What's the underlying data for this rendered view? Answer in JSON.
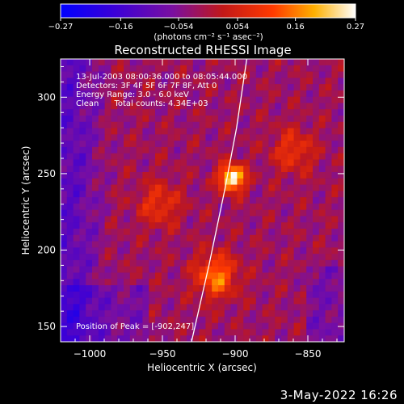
{
  "chart_data": {
    "type": "heatmap",
    "title": "Reconstructed RHESSI Image",
    "xlabel": "Heliocentric X (arcsec)",
    "ylabel": "Heliocentric Y (arcsec)",
    "xlim": [
      -1020,
      -825
    ],
    "ylim": [
      140,
      325
    ],
    "xticks": [
      -1000,
      -950,
      -900,
      -850
    ],
    "xtick_labels": [
      "−1000",
      "−950",
      "−900",
      "−850"
    ],
    "yticks": [
      150,
      200,
      250,
      300
    ],
    "ytick_labels": [
      "150",
      "200",
      "250",
      "300"
    ],
    "colorbar": {
      "min": -0.27,
      "max": 0.27,
      "ticks": [
        -0.27,
        -0.16,
        -0.054,
        0.054,
        0.16,
        0.27
      ],
      "tick_labels": [
        "−0.27",
        "−0.16",
        "−0.054",
        "0.054",
        "0.16",
        "0.27"
      ],
      "unit_label": "(photons cm⁻² s⁻¹ asec⁻²)",
      "colormap": "rhessi-blue-purple-red-yellow-white"
    },
    "annotations": [
      "13-Jul-2003 08:00:36.000 to 08:05:44.000",
      "Detectors: 3F 4F 5F 6F 7F 8F, Att 0",
      "Energy Range: 3.0 - 6.0 keV",
      "Clean      Total counts: 4.34E+03"
    ],
    "peak_label": "Position of Peak = [-902,247]",
    "peak": {
      "x": -902,
      "y": 247,
      "value": 0.27
    },
    "secondary_sources": [
      {
        "x": -913,
        "y": 183,
        "value": 0.14
      },
      {
        "x": -952,
        "y": 230,
        "value": 0.07
      },
      {
        "x": -860,
        "y": 265,
        "value": 0.07
      }
    ],
    "limb_curve": [
      {
        "x": -930,
        "y": 140
      },
      {
        "x": -918,
        "y": 190
      },
      {
        "x": -907,
        "y": 240
      },
      {
        "x": -899,
        "y": 280
      },
      {
        "x": -892,
        "y": 325
      }
    ]
  },
  "footer_date": "3-May-2022 16:26"
}
